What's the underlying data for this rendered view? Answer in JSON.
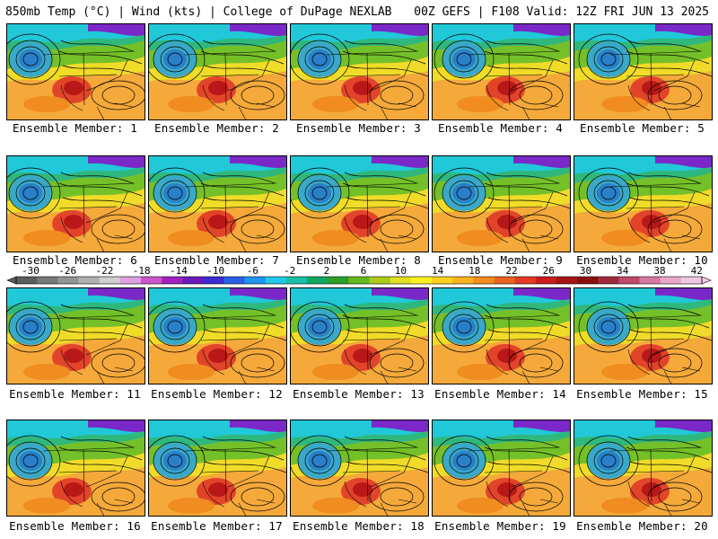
{
  "header": {
    "left": "850mb Temp (°C) | Wind (kts) | College of DuPage NEXLAB",
    "right": "00Z GEFS | F108 Valid: 12Z FRI JUN 13 2025"
  },
  "panels": [
    {
      "label": "Ensemble Member: 1"
    },
    {
      "label": "Ensemble Member: 2"
    },
    {
      "label": "Ensemble Member: 3"
    },
    {
      "label": "Ensemble Member: 4"
    },
    {
      "label": "Ensemble Member: 5"
    },
    {
      "label": "Ensemble Member: 6"
    },
    {
      "label": "Ensemble Member: 7"
    },
    {
      "label": "Ensemble Member: 8"
    },
    {
      "label": "Ensemble Member: 9"
    },
    {
      "label": "Ensemble Member: 10"
    },
    {
      "label": "Ensemble Member: 11"
    },
    {
      "label": "Ensemble Member: 12"
    },
    {
      "label": "Ensemble Member: 13"
    },
    {
      "label": "Ensemble Member: 14"
    },
    {
      "label": "Ensemble Member: 15"
    },
    {
      "label": "Ensemble Member: 16"
    },
    {
      "label": "Ensemble Member: 17"
    },
    {
      "label": "Ensemble Member: 18"
    },
    {
      "label": "Ensemble Member: 19"
    },
    {
      "label": "Ensemble Member: 20"
    }
  ],
  "colorbar": {
    "labels": [
      "-30",
      "-26",
      "-22",
      "-18",
      "-14",
      "-10",
      "-6",
      "-2",
      "2",
      "6",
      "10",
      "14",
      "18",
      "22",
      "26",
      "30",
      "34",
      "38",
      "42"
    ],
    "colors": [
      "#5c5c5c",
      "#787878",
      "#949494",
      "#b0b0b0",
      "#cfcfcf",
      "#e0a0e0",
      "#cc55cc",
      "#a020c0",
      "#6a1ab8",
      "#3b2bd0",
      "#2a60e8",
      "#1e96f0",
      "#22c8e8",
      "#18c0a8",
      "#10a860",
      "#2ea02a",
      "#66b820",
      "#a8cc18",
      "#e0e020",
      "#fff020",
      "#ffd21e",
      "#fbb41c",
      "#f58c1e",
      "#ee6220",
      "#e43c22",
      "#cc1c1c",
      "#a81414",
      "#8a0e0e",
      "#a02a3c",
      "#c04a6a",
      "#d878a0",
      "#e8a8cc",
      "#f0c8e4"
    ]
  }
}
